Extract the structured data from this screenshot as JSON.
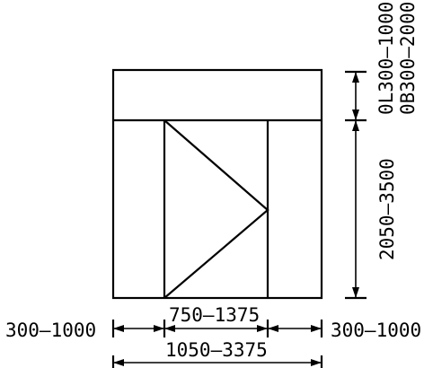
{
  "labels": {
    "transom_height_left": "0L300–1000",
    "transom_height_right": "0B300–2000",
    "door_height": "2050–3500",
    "door_leaf_width": "750–1375",
    "side_panel_left": "300–1000",
    "side_panel_right": "300–1000",
    "overall_width": "1050–3375"
  }
}
